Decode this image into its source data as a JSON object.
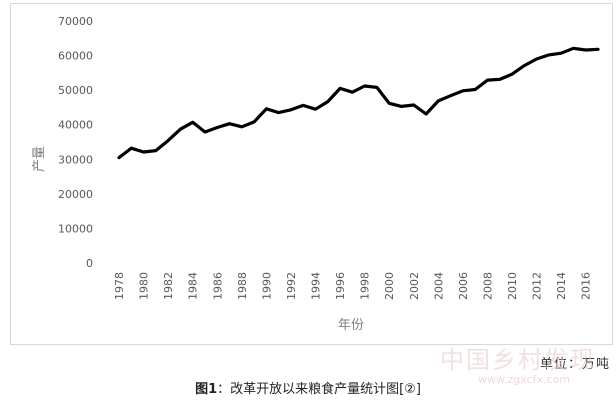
{
  "chart_data": {
    "type": "line",
    "title": "",
    "xlabel": "年份",
    "ylabel": "产量",
    "ylim": [
      0,
      70000
    ],
    "yticks": [
      0,
      10000,
      20000,
      30000,
      40000,
      50000,
      60000,
      70000
    ],
    "xticks": [
      1978,
      1980,
      1982,
      1984,
      1986,
      1988,
      1990,
      1992,
      1994,
      1996,
      1998,
      2000,
      2002,
      2004,
      2006,
      2008,
      2010,
      2012,
      2014,
      2016
    ],
    "grid": false,
    "legend": "none",
    "line_color": "#000000",
    "x": [
      1978,
      1979,
      1980,
      1981,
      1982,
      1983,
      1984,
      1985,
      1986,
      1987,
      1988,
      1989,
      1990,
      1991,
      1992,
      1993,
      1994,
      1995,
      1996,
      1997,
      1998,
      1999,
      2000,
      2001,
      2002,
      2003,
      2004,
      2005,
      2006,
      2007,
      2008,
      2009,
      2010,
      2011,
      2012,
      2013,
      2014,
      2015,
      2016,
      2017
    ],
    "values": [
      30500,
      33200,
      32100,
      32500,
      35400,
      38700,
      40700,
      37900,
      39200,
      40300,
      39400,
      40800,
      44600,
      43500,
      44300,
      45600,
      44500,
      46700,
      50500,
      49400,
      51200,
      50800,
      46200,
      45300,
      45700,
      43100,
      46900,
      48400,
      49800,
      50200,
      52900,
      53100,
      54600,
      57100,
      59000,
      60200,
      60700,
      62100,
      61600,
      61800
    ]
  },
  "unit_note": "单位：万吨",
  "caption": {
    "fig_no": "图1",
    "text": "：改革开放以来粮食产量统计图[②]"
  },
  "watermark": {
    "text": "中国乡村发现",
    "url": "www.zgxcfx.com"
  }
}
